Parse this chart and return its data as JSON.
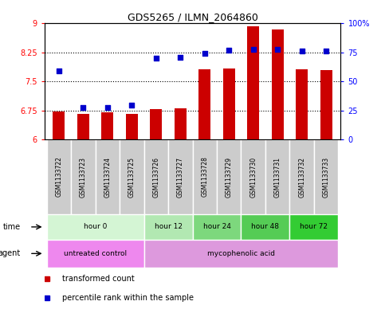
{
  "title": "GDS5265 / ILMN_2064860",
  "samples": [
    "GSM1133722",
    "GSM1133723",
    "GSM1133724",
    "GSM1133725",
    "GSM1133726",
    "GSM1133727",
    "GSM1133728",
    "GSM1133729",
    "GSM1133730",
    "GSM1133731",
    "GSM1133732",
    "GSM1133733"
  ],
  "bar_values": [
    6.72,
    6.65,
    6.7,
    6.65,
    6.78,
    6.8,
    7.82,
    7.84,
    8.93,
    8.85,
    7.81,
    7.79
  ],
  "scatter_values": [
    7.78,
    6.82,
    6.82,
    6.88,
    8.1,
    8.12,
    8.22,
    8.3,
    8.33,
    8.32,
    8.28,
    8.28
  ],
  "bar_color": "#cc0000",
  "scatter_color": "#0000cc",
  "ylim_left": [
    6,
    9
  ],
  "ylim_right": [
    0,
    100
  ],
  "yticks_left": [
    6,
    6.75,
    7.5,
    8.25,
    9
  ],
  "yticks_right": [
    0,
    25,
    50,
    75,
    100
  ],
  "ytick_labels_left": [
    "6",
    "6.75",
    "7.5",
    "8.25",
    "9"
  ],
  "ytick_labels_right": [
    "0",
    "25",
    "50",
    "75",
    "100%"
  ],
  "hlines": [
    6.75,
    7.5,
    8.25
  ],
  "time_groups": [
    {
      "label": "hour 0",
      "start": 0,
      "end": 4,
      "color": "#d4f5d4"
    },
    {
      "label": "hour 12",
      "start": 4,
      "end": 6,
      "color": "#b2e8b2"
    },
    {
      "label": "hour 24",
      "start": 6,
      "end": 8,
      "color": "#7dd87d"
    },
    {
      "label": "hour 48",
      "start": 8,
      "end": 10,
      "color": "#55cc55"
    },
    {
      "label": "hour 72",
      "start": 10,
      "end": 12,
      "color": "#33cc33"
    }
  ],
  "agent_groups": [
    {
      "label": "untreated control",
      "start": 0,
      "end": 4,
      "color": "#ee88ee"
    },
    {
      "label": "mycophenolic acid",
      "start": 4,
      "end": 12,
      "color": "#dd99dd"
    }
  ],
  "legend_items": [
    {
      "label": "transformed count",
      "color": "#cc0000"
    },
    {
      "label": "percentile rank within the sample",
      "color": "#0000cc"
    }
  ],
  "sample_bg": "#cccccc",
  "bar_width": 0.5,
  "scatter_size": 14
}
